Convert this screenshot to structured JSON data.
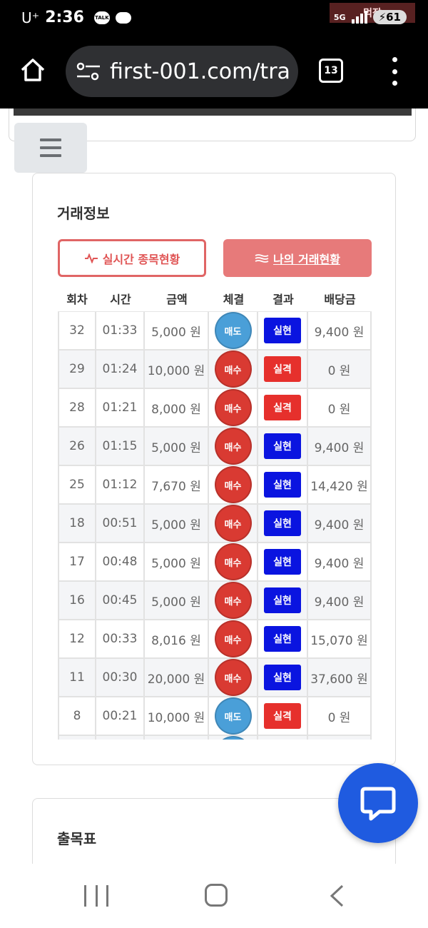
{
  "status_bar": {
    "carrier": "U⁺",
    "time": "2:36",
    "talk_label": "TALK",
    "network": "5G",
    "battery": "61",
    "watermark": "먹잡"
  },
  "browser": {
    "url": "first-001.com/tra",
    "tab_count": "13"
  },
  "trade_info": {
    "title": "거래정보",
    "realtime_button": "실시간 종목현황",
    "my_trades_button": "나의 거래현황",
    "columns": [
      "회차",
      "시간",
      "금액",
      "체결",
      "결과",
      "배당금"
    ],
    "rows": [
      {
        "round": "32",
        "time": "01:33",
        "amount": "5,000 원",
        "side": "매도",
        "side_type": "sell",
        "result": "실현",
        "result_type": "hit",
        "payout": "9,400 원"
      },
      {
        "round": "29",
        "time": "01:24",
        "amount": "10,000 원",
        "side": "매수",
        "side_type": "buy",
        "result": "실격",
        "result_type": "miss",
        "payout": "0 원"
      },
      {
        "round": "28",
        "time": "01:21",
        "amount": "8,000 원",
        "side": "매수",
        "side_type": "buy",
        "result": "실격",
        "result_type": "miss",
        "payout": "0 원"
      },
      {
        "round": "26",
        "time": "01:15",
        "amount": "5,000 원",
        "side": "매수",
        "side_type": "buy",
        "result": "실현",
        "result_type": "hit",
        "payout": "9,400 원"
      },
      {
        "round": "25",
        "time": "01:12",
        "amount": "7,670 원",
        "side": "매수",
        "side_type": "buy",
        "result": "실현",
        "result_type": "hit",
        "payout": "14,420 원"
      },
      {
        "round": "18",
        "time": "00:51",
        "amount": "5,000 원",
        "side": "매수",
        "side_type": "buy",
        "result": "실현",
        "result_type": "hit",
        "payout": "9,400 원"
      },
      {
        "round": "17",
        "time": "00:48",
        "amount": "5,000 원",
        "side": "매수",
        "side_type": "buy",
        "result": "실현",
        "result_type": "hit",
        "payout": "9,400 원"
      },
      {
        "round": "16",
        "time": "00:45",
        "amount": "5,000 원",
        "side": "매수",
        "side_type": "buy",
        "result": "실현",
        "result_type": "hit",
        "payout": "9,400 원"
      },
      {
        "round": "12",
        "time": "00:33",
        "amount": "8,016 원",
        "side": "매수",
        "side_type": "buy",
        "result": "실현",
        "result_type": "hit",
        "payout": "15,070 원"
      },
      {
        "round": "11",
        "time": "00:30",
        "amount": "20,000 원",
        "side": "매수",
        "side_type": "buy",
        "result": "실현",
        "result_type": "hit",
        "payout": "37,600 원"
      },
      {
        "round": "8",
        "time": "00:21",
        "amount": "10,000 원",
        "side": "매도",
        "side_type": "sell",
        "result": "실격",
        "result_type": "miss",
        "payout": "0 원"
      },
      {
        "round": "",
        "time": "",
        "amount": "",
        "side": "",
        "side_type": "sell",
        "result": "",
        "result_type": "none",
        "payout": ""
      }
    ]
  },
  "results_card": {
    "title": "출목표"
  },
  "colors": {
    "accent_red": "#e06565",
    "buy_red": "#d93a32",
    "sell_blue": "#4a9fd8",
    "hit_blue": "#0a14e0",
    "miss_red": "#e6302c",
    "chat_blue": "#1f5be0"
  },
  "icons": [
    "home-icon",
    "tune-icon",
    "tabs-icon",
    "menu-icon",
    "hamburger-icon",
    "pulse-icon",
    "waves-icon",
    "chat-icon",
    "recent-apps-icon",
    "nav-home-icon",
    "back-icon"
  ]
}
